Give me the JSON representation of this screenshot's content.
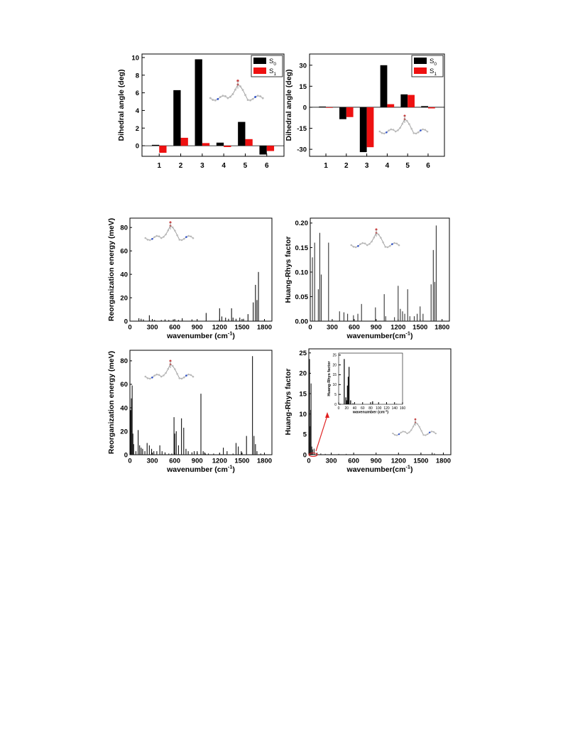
{
  "chart_data": [
    {
      "id": "a",
      "type": "bar",
      "ylabel": "Dihedral angle (deg)",
      "categories": [
        "1",
        "2",
        "3",
        "4",
        "5",
        "6"
      ],
      "ylim": [
        -1.2,
        10.4
      ],
      "yticks": [
        0,
        2,
        4,
        6,
        8,
        10
      ],
      "grid": false,
      "legend": "top-right",
      "series": [
        {
          "name": "S",
          "sub": "0",
          "color": "#000000",
          "values": [
            0.1,
            6.3,
            9.8,
            0.35,
            2.7,
            -1.0
          ]
        },
        {
          "name": "S",
          "sub": "1",
          "color": "#ee1111",
          "values": [
            -0.8,
            0.9,
            0.3,
            -0.15,
            0.75,
            -0.6
          ]
        }
      ]
    },
    {
      "id": "b",
      "type": "bar",
      "ylabel": "Dihedral angle (deg)",
      "categories": [
        "1",
        "2",
        "3",
        "4",
        "5",
        "6"
      ],
      "ylim": [
        -35,
        38
      ],
      "yticks": [
        -30,
        -15,
        0,
        15,
        30
      ],
      "grid": false,
      "legend": "top-right",
      "series": [
        {
          "name": "S",
          "sub": "0",
          "color": "#000000",
          "values": [
            0.5,
            -8.5,
            -32,
            30,
            9.2,
            0.8
          ]
        },
        {
          "name": "S",
          "sub": "1",
          "color": "#ee1111",
          "values": [
            0,
            -7,
            -28.5,
            2.2,
            8.8,
            -0.8
          ]
        }
      ]
    },
    {
      "id": "c",
      "type": "bar",
      "ylabel": "Reorganization energy (meV)",
      "xlabel": "wavenumber (cm",
      "xlabel_sup": "-1",
      "xlabel_end": ")",
      "xlim": [
        0,
        1900
      ],
      "ylim": [
        0,
        88
      ],
      "xticks": [
        0,
        300,
        600,
        900,
        1200,
        1500,
        1800
      ],
      "yticks": [
        0,
        20,
        40,
        60,
        80
      ],
      "x": [
        120,
        150,
        180,
        260,
        330,
        420,
        470,
        520,
        580,
        650,
        700,
        830,
        1020,
        1200,
        1230,
        1280,
        1320,
        1360,
        1380,
        1420,
        1470,
        1520,
        1580,
        1650,
        1680,
        1700,
        1720
      ],
      "values": [
        2.5,
        2,
        1.5,
        5,
        1,
        1,
        1.5,
        1,
        1.5,
        1,
        2.5,
        1.5,
        7,
        11,
        4,
        3,
        2,
        11,
        3,
        2,
        3,
        2,
        6,
        16,
        31,
        18,
        42
      ]
    },
    {
      "id": "d",
      "type": "bar",
      "ylabel": "Huang-Rhys factor",
      "xlabel": "wavenumber(cm",
      "xlabel_sup": "-1",
      "xlabel_end": ")",
      "xlim": [
        0,
        1900
      ],
      "ylim": [
        0,
        0.21
      ],
      "xticks": [
        0,
        300,
        600,
        900,
        1200,
        1500,
        1800
      ],
      "yticks": [
        0.0,
        0.05,
        0.1,
        0.15,
        0.2
      ],
      "ytick_labels": [
        "0.00",
        "0.05",
        "0.10",
        "0.15",
        "0.20"
      ],
      "x": [
        30,
        60,
        110,
        130,
        150,
        250,
        400,
        460,
        510,
        590,
        650,
        700,
        890,
        1010,
        1030,
        1150,
        1200,
        1230,
        1260,
        1290,
        1330,
        1360,
        1420,
        1460,
        1500,
        1540,
        1650,
        1680,
        1700,
        1720
      ],
      "values": [
        0.13,
        0.16,
        0.065,
        0.18,
        0.095,
        0.16,
        0.02,
        0.018,
        0.015,
        0.012,
        0.015,
        0.035,
        0.028,
        0.055,
        0.01,
        0.008,
        0.072,
        0.025,
        0.02,
        0.015,
        0.065,
        0.01,
        0.01,
        0.015,
        0.03,
        0.015,
        0.075,
        0.145,
        0.08,
        0.195
      ]
    },
    {
      "id": "e",
      "type": "bar",
      "ylabel": "Reorganization energy (meV)",
      "xlabel": "wavenumber (cm",
      "xlabel_sup": "-1",
      "xlabel_end": ")",
      "xlim": [
        0,
        1900
      ],
      "ylim": [
        0,
        89
      ],
      "xticks": [
        0,
        300,
        600,
        900,
        1200,
        1500,
        1800
      ],
      "yticks": [
        0,
        20,
        40,
        60,
        80
      ],
      "x": [
        10,
        20,
        30,
        40,
        50,
        80,
        110,
        130,
        150,
        170,
        200,
        230,
        260,
        290,
        320,
        360,
        400,
        430,
        470,
        520,
        560,
        590,
        600,
        620,
        650,
        690,
        720,
        750,
        780,
        830,
        860,
        900,
        950,
        980,
        1000,
        1010,
        1050,
        1120,
        1200,
        1250,
        1300,
        1380,
        1420,
        1450,
        1490,
        1560,
        1640,
        1660,
        1680,
        1700,
        1750
      ],
      "values": [
        38,
        48,
        59,
        18,
        9,
        3,
        21,
        8,
        6,
        5,
        3,
        10,
        8,
        5,
        3,
        3,
        8,
        3,
        2,
        1,
        1,
        32,
        18,
        20,
        8,
        31,
        23,
        5,
        3,
        2,
        3,
        3,
        52,
        3,
        2,
        1,
        1,
        1,
        1,
        6,
        3,
        1,
        10,
        7,
        3,
        16,
        84,
        16,
        9,
        3,
        1
      ]
    },
    {
      "id": "f",
      "type": "bar",
      "ylabel": "Huang-Rhys factor",
      "xlabel": "wavenumber(cm",
      "xlabel_sup": "-1",
      "xlabel_end": ")",
      "xlim": [
        0,
        1900
      ],
      "ylim": [
        0,
        26
      ],
      "xticks": [
        0,
        300,
        600,
        900,
        1200,
        1500,
        1800
      ],
      "yticks": [
        0,
        5,
        10,
        15,
        20,
        25
      ],
      "x": [
        10,
        15,
        20,
        25,
        30,
        40,
        50,
        70,
        110,
        160,
        220,
        300,
        400,
        500,
        700,
        900,
        1200,
        1650,
        1680
      ],
      "values": [
        23.5,
        3,
        7,
        11,
        17.5,
        2,
        1.3,
        1.5,
        0.5,
        0.3,
        0.2,
        0.2,
        0.2,
        0.2,
        0.1,
        0.1,
        0.1,
        0.5,
        0.3
      ],
      "inset": {
        "ylabel": "Huang-Rhys factor",
        "xlabel": "wavenumber (cm",
        "xlabel_sup": "-1",
        "xlabel_end": ")",
        "xlim": [
          0,
          160
        ],
        "ylim": [
          0,
          26
        ],
        "xticks": [
          0,
          20,
          40,
          60,
          80,
          100,
          120,
          140,
          160
        ],
        "yticks": [
          0,
          5,
          10,
          15,
          20,
          25
        ],
        "x": [
          14,
          18,
          20,
          22,
          24,
          26,
          30,
          36,
          85,
          120,
          145
        ],
        "values": [
          23,
          3.5,
          2,
          9.5,
          14,
          19,
          2,
          0.5,
          1.5,
          0.3,
          0.2
        ]
      }
    }
  ]
}
